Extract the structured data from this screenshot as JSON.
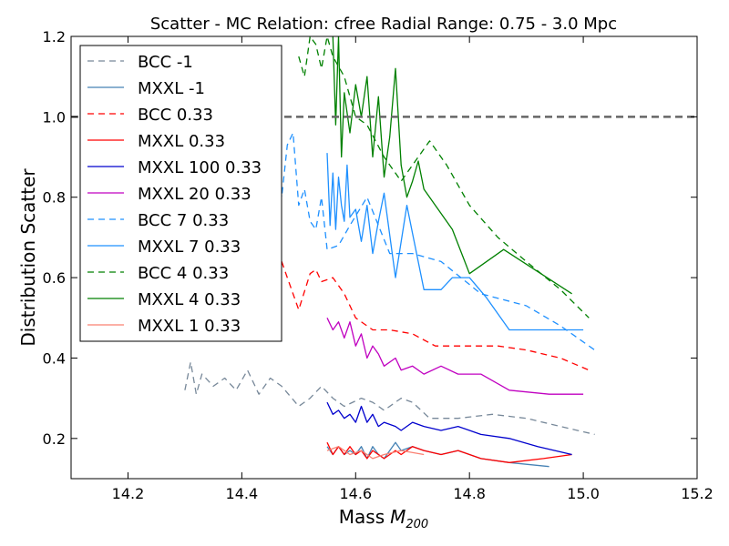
{
  "chart_data": {
    "type": "line",
    "title": "Scatter - MC Relation: cfree Radial Range: 0.75 - 3.0 Mpc",
    "xlabel": "Mass",
    "xlabel_math": "M",
    "xlabel_sub": "200",
    "ylabel": "Distribution Scatter",
    "xlim": [
      14.1,
      15.2
    ],
    "ylim": [
      0.1,
      1.2
    ],
    "x_ticks": [
      14.2,
      14.4,
      14.6,
      14.8,
      15.0,
      15.2
    ],
    "x_tick_labels": [
      "14.2",
      "14.4",
      "14.6",
      "14.8",
      "15.0",
      "15.2"
    ],
    "y_ticks": [
      0.2,
      0.4,
      0.6,
      0.8,
      1.0,
      1.2
    ],
    "y_tick_labels": [
      "0.2",
      "0.4",
      "0.6",
      "0.8",
      "1.0",
      "1.2"
    ],
    "grid": false,
    "legend_position": "top-left",
    "reference_line": {
      "y": 1.0,
      "color": "#666666",
      "style": "dashed"
    },
    "series": [
      {
        "name": "BCC -1",
        "color": "#778899",
        "dash": "dashed",
        "x": [
          14.3,
          14.31,
          14.32,
          14.33,
          14.35,
          14.37,
          14.39,
          14.41,
          14.43,
          14.45,
          14.47,
          14.5,
          14.52,
          14.54,
          14.56,
          14.58,
          14.61,
          14.63,
          14.65,
          14.68,
          14.7,
          14.73,
          14.78,
          14.84,
          14.9,
          14.96,
          15.02
        ],
        "y": [
          0.32,
          0.39,
          0.31,
          0.36,
          0.33,
          0.35,
          0.32,
          0.37,
          0.31,
          0.35,
          0.33,
          0.28,
          0.3,
          0.33,
          0.3,
          0.28,
          0.3,
          0.29,
          0.27,
          0.3,
          0.29,
          0.25,
          0.25,
          0.26,
          0.25,
          0.23,
          0.21
        ]
      },
      {
        "name": "MXXL -1",
        "color": "#4682B4",
        "dash": "solid",
        "x": [
          14.55,
          14.56,
          14.57,
          14.58,
          14.59,
          14.6,
          14.61,
          14.62,
          14.63,
          14.64,
          14.65,
          14.67,
          14.68,
          14.7,
          14.72,
          14.75,
          14.78,
          14.82,
          14.87,
          14.94
        ],
        "y": [
          0.18,
          0.16,
          0.18,
          0.16,
          0.17,
          0.16,
          0.18,
          0.15,
          0.18,
          0.16,
          0.15,
          0.19,
          0.17,
          0.18,
          0.17,
          0.16,
          0.17,
          0.15,
          0.14,
          0.13
        ]
      },
      {
        "name": "BCC 0.33",
        "color": "#ff0000",
        "dash": "dashed",
        "x": [
          14.47,
          14.48,
          14.5,
          14.52,
          14.53,
          14.54,
          14.56,
          14.58,
          14.6,
          14.63,
          14.66,
          14.7,
          14.74,
          14.8,
          14.85,
          14.9,
          14.96,
          15.01
        ],
        "y": [
          0.64,
          0.6,
          0.52,
          0.61,
          0.62,
          0.59,
          0.6,
          0.56,
          0.5,
          0.47,
          0.47,
          0.46,
          0.43,
          0.43,
          0.43,
          0.42,
          0.4,
          0.37
        ]
      },
      {
        "name": "MXXL 0.33",
        "color": "#ff0000",
        "dash": "solid",
        "x": [
          14.55,
          14.56,
          14.57,
          14.58,
          14.59,
          14.6,
          14.61,
          14.62,
          14.63,
          14.64,
          14.65,
          14.67,
          14.68,
          14.7,
          14.72,
          14.75,
          14.78,
          14.82,
          14.87,
          14.93,
          14.98
        ],
        "y": [
          0.19,
          0.16,
          0.18,
          0.16,
          0.18,
          0.16,
          0.17,
          0.15,
          0.17,
          0.16,
          0.15,
          0.17,
          0.16,
          0.18,
          0.17,
          0.16,
          0.17,
          0.15,
          0.14,
          0.15,
          0.16
        ]
      },
      {
        "name": "MXXL 100 0.33",
        "color": "#0000cd",
        "dash": "solid",
        "x": [
          14.55,
          14.56,
          14.57,
          14.58,
          14.59,
          14.6,
          14.61,
          14.62,
          14.63,
          14.64,
          14.65,
          14.67,
          14.68,
          14.7,
          14.72,
          14.75,
          14.78,
          14.82,
          14.87,
          14.92,
          14.98
        ],
        "y": [
          0.29,
          0.26,
          0.27,
          0.25,
          0.26,
          0.24,
          0.28,
          0.24,
          0.26,
          0.23,
          0.24,
          0.23,
          0.22,
          0.24,
          0.23,
          0.22,
          0.23,
          0.21,
          0.2,
          0.18,
          0.16
        ]
      },
      {
        "name": "MXXL 20 0.33",
        "color": "#c000c0",
        "dash": "solid",
        "x": [
          14.55,
          14.56,
          14.57,
          14.58,
          14.59,
          14.6,
          14.61,
          14.62,
          14.63,
          14.64,
          14.65,
          14.67,
          14.68,
          14.7,
          14.72,
          14.75,
          14.78,
          14.82,
          14.87,
          14.94,
          15.0
        ],
        "y": [
          0.5,
          0.47,
          0.49,
          0.45,
          0.49,
          0.43,
          0.46,
          0.4,
          0.43,
          0.41,
          0.38,
          0.4,
          0.37,
          0.38,
          0.36,
          0.38,
          0.36,
          0.36,
          0.32,
          0.31,
          0.31
        ]
      },
      {
        "name": "BCC 7 0.33",
        "color": "#1e90ff",
        "dash": "dashed",
        "x": [
          14.44,
          14.45,
          14.46,
          14.47,
          14.48,
          14.49,
          14.5,
          14.51,
          14.52,
          14.53,
          14.54,
          14.55,
          14.57,
          14.59,
          14.62,
          14.66,
          14.7,
          14.75,
          14.82,
          14.9,
          14.96,
          15.02
        ],
        "y": [
          0.9,
          0.84,
          0.96,
          0.8,
          0.93,
          0.96,
          0.78,
          0.82,
          0.74,
          0.72,
          0.8,
          0.67,
          0.68,
          0.73,
          0.8,
          0.66,
          0.66,
          0.64,
          0.56,
          0.53,
          0.48,
          0.42
        ]
      },
      {
        "name": "MXXL 7 0.33",
        "color": "#1e90ff",
        "dash": "solid",
        "x": [
          14.55,
          14.555,
          14.56,
          14.565,
          14.57,
          14.575,
          14.58,
          14.585,
          14.59,
          14.6,
          14.61,
          14.62,
          14.63,
          14.64,
          14.65,
          14.67,
          14.69,
          14.7,
          14.72,
          14.75,
          14.77,
          14.8,
          14.83,
          14.87,
          14.93,
          15.0
        ],
        "y": [
          0.91,
          0.73,
          0.86,
          0.72,
          0.85,
          0.78,
          0.74,
          0.88,
          0.75,
          0.77,
          0.69,
          0.78,
          0.66,
          0.74,
          0.81,
          0.6,
          0.78,
          0.71,
          0.57,
          0.57,
          0.6,
          0.6,
          0.55,
          0.47,
          0.47,
          0.47
        ]
      },
      {
        "name": "BCC 4 0.33",
        "color": "#008000",
        "dash": "dashed",
        "x": [
          14.5,
          14.51,
          14.52,
          14.53,
          14.54,
          14.55,
          14.56,
          14.58,
          14.6,
          14.62,
          14.65,
          14.68,
          14.7,
          14.73,
          14.76,
          14.8,
          14.85,
          14.9,
          14.96,
          15.01
        ],
        "y": [
          1.15,
          1.1,
          1.2,
          1.18,
          1.12,
          1.2,
          1.15,
          1.1,
          1.0,
          0.98,
          0.9,
          0.84,
          0.88,
          0.94,
          0.88,
          0.78,
          0.7,
          0.64,
          0.57,
          0.5
        ]
      },
      {
        "name": "MXXL 4 0.33",
        "color": "#008000",
        "dash": "solid",
        "x": [
          14.56,
          14.565,
          14.57,
          14.575,
          14.58,
          14.59,
          14.6,
          14.61,
          14.62,
          14.63,
          14.64,
          14.65,
          14.66,
          14.67,
          14.68,
          14.69,
          14.7,
          14.71,
          14.72,
          14.74,
          14.77,
          14.8,
          14.86,
          14.98
        ],
        "y": [
          1.2,
          0.98,
          1.2,
          0.9,
          1.06,
          0.96,
          1.08,
          1.0,
          1.1,
          0.9,
          1.05,
          0.85,
          0.95,
          1.12,
          0.88,
          0.8,
          0.84,
          0.89,
          0.82,
          0.78,
          0.72,
          0.61,
          0.67,
          0.56
        ]
      },
      {
        "name": "MXXL 1 0.33",
        "color": "#fa8072",
        "dash": "solid",
        "x": [
          14.55,
          14.57,
          14.59,
          14.61,
          14.63,
          14.65,
          14.68,
          14.72
        ],
        "y": [
          0.17,
          0.18,
          0.16,
          0.17,
          0.15,
          0.16,
          0.17,
          0.16
        ]
      }
    ]
  }
}
